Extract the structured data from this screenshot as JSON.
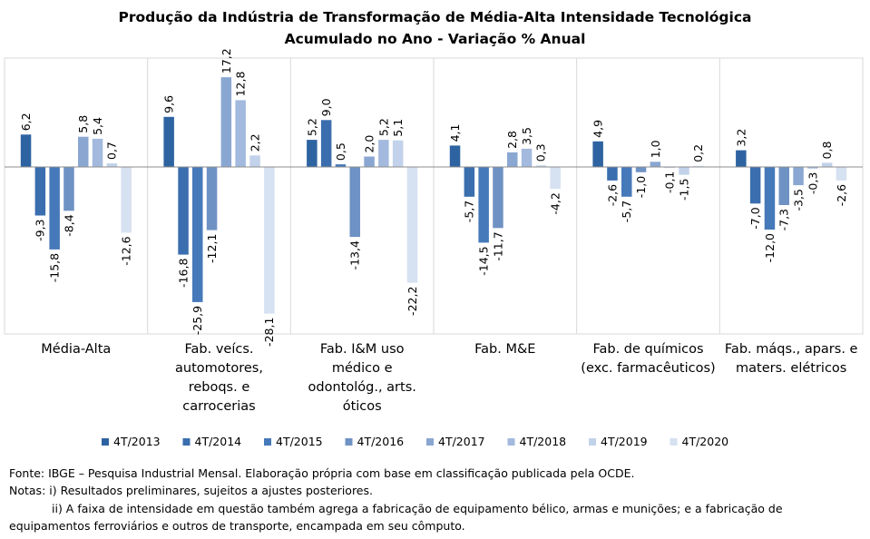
{
  "title": "Produção da Indústria de Transformação de Média-Alta Intensidade Tecnológica",
  "subtitle": "Acumulado no Ano - Variação % Anual",
  "chart_data": {
    "type": "bar",
    "title": "Produção da Indústria de Transformação de Média-Alta Intensidade Tecnológica",
    "subtitle": "Acumulado no Ano - Variação % Anual",
    "categories": [
      [
        "Média-Alta"
      ],
      [
        "Fab. veícs.",
        "automotores,",
        "reboqs. e",
        "carrocerias"
      ],
      [
        "Fab. I&M uso",
        "médico e",
        "odontológ., arts.",
        "óticos"
      ],
      [
        "Fab. M&E"
      ],
      [
        "Fab. de químicos",
        "(exc. farmacêuticos)"
      ],
      [
        "Fab. máqs., apars. e",
        "maters. elétricos"
      ]
    ],
    "series": [
      {
        "name": "4T/2013",
        "color": "#2e63a1",
        "values": [
          6.2,
          9.6,
          5.2,
          4.1,
          4.9,
          3.2
        ],
        "labels": [
          "6,2",
          "9,6",
          "5,2",
          "4,1",
          "4,9",
          "3,2"
        ]
      },
      {
        "name": "4T/2014",
        "color": "#3a6eae",
        "values": [
          -9.3,
          -16.8,
          9.0,
          -5.7,
          -2.6,
          -7.0
        ],
        "labels": [
          "-9,3",
          "-16,8",
          "9,0",
          "-5,7",
          "-2,6",
          "-7,0"
        ]
      },
      {
        "name": "4T/2015",
        "color": "#4679ba",
        "values": [
          -15.8,
          -25.9,
          0.5,
          -14.5,
          -5.7,
          -12.0
        ],
        "labels": [
          "-15,8",
          "-25,9",
          "0,5",
          "-14,5",
          "-5,7",
          "-12,0"
        ]
      },
      {
        "name": "4T/2016",
        "color": "#6f92c4",
        "values": [
          -8.4,
          -12.1,
          -13.4,
          -11.7,
          -1.0,
          -7.3
        ],
        "labels": [
          "-8,4",
          "-12,1",
          "-13,4",
          "-11,7",
          "-1,0",
          "-7,3"
        ]
      },
      {
        "name": "4T/2017",
        "color": "#8aa7d2",
        "values": [
          5.8,
          17.2,
          2.0,
          2.8,
          1.0,
          -3.5
        ],
        "labels": [
          "5,8",
          "17,2",
          "2,0",
          "2,8",
          "1,0",
          "-3,5"
        ]
      },
      {
        "name": "4T/2018",
        "color": "#a3bade",
        "values": [
          5.4,
          12.8,
          5.2,
          3.5,
          -0.1,
          -0.3
        ],
        "labels": [
          "5,4",
          "12,8",
          "5,2",
          "3,5",
          "-0,1",
          "-0,3"
        ]
      },
      {
        "name": "4T/2019",
        "color": "#c2d2ea",
        "values": [
          0.7,
          2.2,
          5.1,
          0.3,
          -1.5,
          0.8
        ],
        "labels": [
          "0,7",
          "2,2",
          "5,1",
          "0,3",
          "-1,5",
          "0,8"
        ]
      },
      {
        "name": "4T/2020",
        "color": "#d6e1f1",
        "values": [
          -12.6,
          -28.1,
          -22.2,
          -4.2,
          0.2,
          -2.6
        ],
        "labels": [
          "-12,6",
          "-28,1",
          "-22,2",
          "-4,2",
          "0,2",
          "-2,6"
        ]
      }
    ],
    "ylim": [
      -29,
      20
    ],
    "legend_position": "bottom",
    "grid": false
  },
  "notes": {
    "source": "Fonte: IBGE – Pesquisa Industrial Mensal. Elaboração própria com base em classificação publicada pela OCDE.",
    "note1": "Notas: i) Resultados preliminares, sujeitos a ajustes posteriores.",
    "note2": "ii) A faixa de intensidade em questão também agrega a fabricação de equipamento bélico, armas e munições; e a fabricação de",
    "note3": "equipamentos ferroviários e outros de transporte, encampada em seu cômputo."
  }
}
